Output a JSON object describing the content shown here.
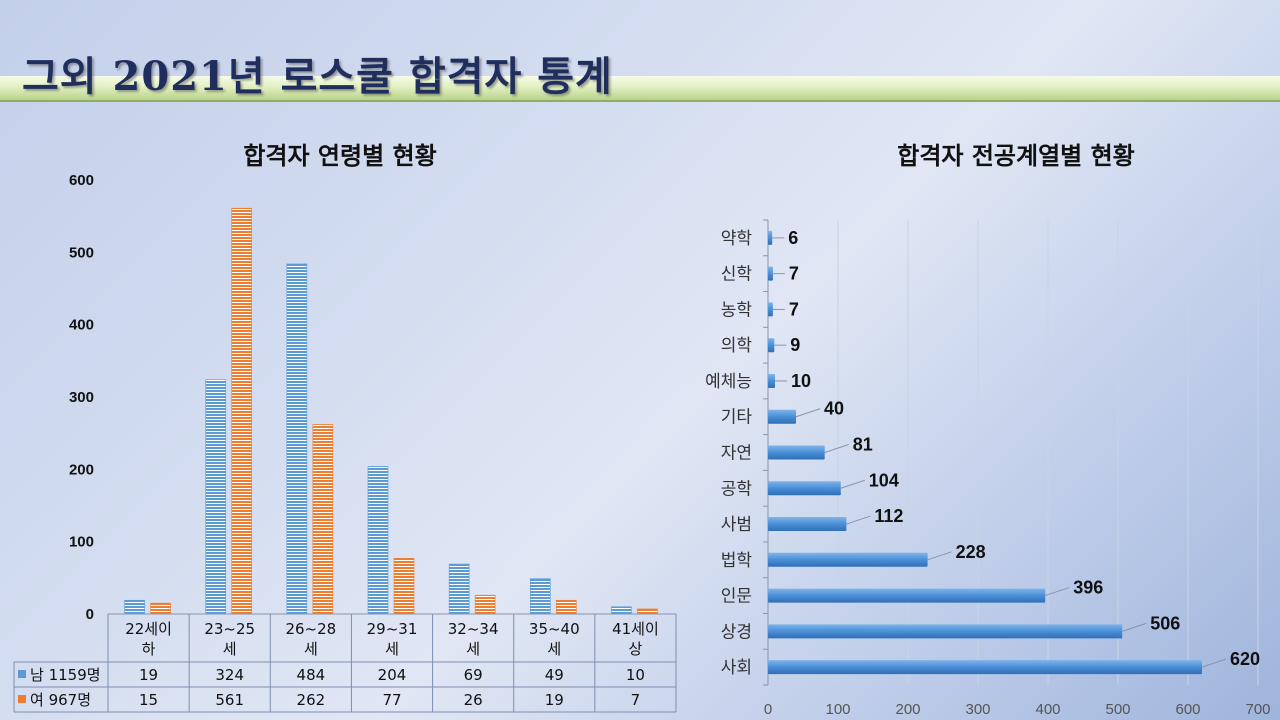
{
  "page": {
    "title": "그외 2021년 로스쿨 합격자 통계"
  },
  "colors": {
    "male": "#5b9bd5",
    "female": "#ed7d31",
    "bar_blue": "#4a8fd6",
    "title_text": "#1f2e5c"
  },
  "chart_data": [
    {
      "type": "bar",
      "title": "합격자 연령별 현황",
      "categories": [
        [
          "22세이",
          "하"
        ],
        [
          "23~25",
          "세"
        ],
        [
          "26~28",
          "세"
        ],
        [
          "29~31",
          "세"
        ],
        [
          "32~34",
          "세"
        ],
        [
          "35~40",
          "세"
        ],
        [
          "41세이",
          "상"
        ]
      ],
      "series": [
        {
          "name": "남 1159명",
          "color": "#5b9bd5",
          "values": [
            19,
            324,
            484,
            204,
            69,
            49,
            10
          ]
        },
        {
          "name": "여 967명",
          "color": "#ed7d31",
          "values": [
            15,
            561,
            262,
            77,
            26,
            19,
            7
          ]
        }
      ],
      "ylim": [
        0,
        600
      ],
      "yticks": [
        0,
        100,
        200,
        300,
        400,
        500,
        600
      ],
      "data_table": true
    },
    {
      "type": "bar",
      "orientation": "horizontal",
      "title": "합격자 전공계열별 현황",
      "categories": [
        "약학",
        "신학",
        "농학",
        "의학",
        "예체능",
        "기타",
        "자연",
        "공학",
        "사범",
        "법학",
        "인문",
        "상경",
        "사회"
      ],
      "values": [
        6,
        7,
        7,
        9,
        10,
        40,
        81,
        104,
        112,
        228,
        396,
        506,
        620
      ],
      "xlim": [
        0,
        700
      ],
      "xticks": [
        0,
        100,
        200,
        300,
        400,
        500,
        600,
        700
      ],
      "grid": true
    }
  ]
}
